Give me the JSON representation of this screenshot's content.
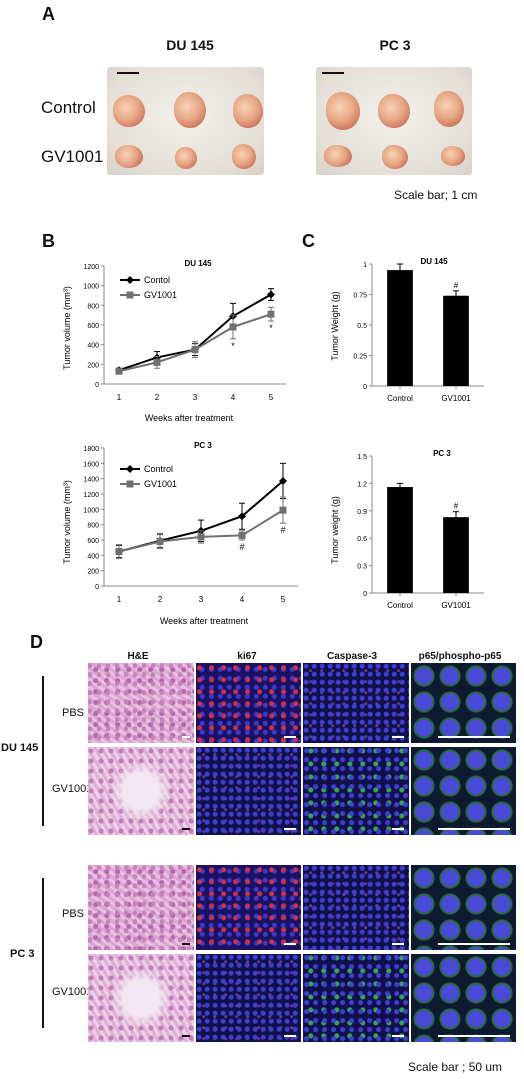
{
  "panels": {
    "a": "A",
    "b": "B",
    "c": "C",
    "d": "D"
  },
  "photo_section": {
    "headers": [
      "DU 145",
      "PC 3"
    ],
    "row_labels": [
      "Control",
      "GV1001"
    ],
    "scale_note": "Scale bar; 1 cm"
  },
  "chart_data": [
    {
      "type": "line",
      "title": "DU 145",
      "xlabel": "Weeks after treatment",
      "ylabel": "Tumor volume (mm³)",
      "x": [
        1,
        2,
        3,
        4,
        5
      ],
      "xticks": [
        "1",
        "2",
        "3",
        "4",
        "5"
      ],
      "ylim": [
        0,
        1200
      ],
      "yticks": [
        "0",
        "200",
        "400",
        "600",
        "800",
        "1000",
        "1200"
      ],
      "legend_position": "top-left",
      "series": [
        {
          "name": "Contol",
          "values": [
            140,
            270,
            350,
            690,
            910
          ],
          "errors": [
            20,
            60,
            60,
            130,
            60
          ],
          "color": "#000000",
          "marker": "diamond"
        },
        {
          "name": "GV1001",
          "values": [
            130,
            220,
            350,
            580,
            710
          ],
          "errors": [
            20,
            60,
            80,
            120,
            70
          ],
          "color": "#707070",
          "marker": "square"
        }
      ],
      "annotations": [
        {
          "x": 4,
          "text": "*"
        },
        {
          "x": 5,
          "text": "*"
        }
      ]
    },
    {
      "type": "line",
      "title": "PC 3",
      "xlabel": "Weeks after treatment",
      "ylabel": "Tumor volume (mm³)",
      "x": [
        1,
        2,
        3,
        4,
        5
      ],
      "xticks": [
        "1",
        "2",
        "3",
        "4",
        "5"
      ],
      "ylim": [
        0,
        1800
      ],
      "yticks": [
        "0",
        "200",
        "400",
        "600",
        "800",
        "1000",
        "1200",
        "1400",
        "1600",
        "1800"
      ],
      "legend_position": "top-left",
      "series": [
        {
          "name": "Control",
          "values": [
            450,
            590,
            720,
            910,
            1370
          ],
          "errors": [
            80,
            90,
            140,
            170,
            230
          ],
          "color": "#000000",
          "marker": "diamond"
        },
        {
          "name": "GV1001",
          "values": [
            450,
            580,
            640,
            660,
            990
          ],
          "errors": [
            90,
            90,
            80,
            60,
            170
          ],
          "color": "#707070",
          "marker": "square"
        }
      ],
      "annotations": [
        {
          "x": 4,
          "text": "#"
        },
        {
          "x": 5,
          "text": "#"
        }
      ]
    },
    {
      "type": "bar",
      "title": "DU 145",
      "ylabel": "Tumor Weight (g)",
      "categories": [
        "Control",
        "GV1001"
      ],
      "values": [
        0.95,
        0.74
      ],
      "errors": [
        0.05,
        0.04
      ],
      "ylim": [
        0,
        1
      ],
      "yticks": [
        "0",
        "0.25",
        "0.5",
        "0.75",
        "1"
      ],
      "annotations": [
        {
          "category": "GV1001",
          "text": "#"
        }
      ]
    },
    {
      "type": "bar",
      "title": "PC 3",
      "ylabel": "Tumor weight (g)",
      "categories": [
        "Control",
        "GV1001"
      ],
      "values": [
        1.16,
        0.83
      ],
      "errors": [
        0.04,
        0.06
      ],
      "ylim": [
        0,
        1.5
      ],
      "yticks": [
        "0",
        "0.3",
        "0.6",
        "0.9",
        "1.2",
        "1.5"
      ],
      "annotations": [
        {
          "category": "GV1001",
          "text": "#"
        }
      ]
    }
  ],
  "histology": {
    "columns": [
      "H&E",
      "ki67",
      "Caspase-3",
      "p65/phospho-p65"
    ],
    "groups": [
      "DU 145",
      "PC 3"
    ],
    "rows": [
      "PBS",
      "GV1001"
    ],
    "scale_note": "Scale bar ; 50 um"
  }
}
